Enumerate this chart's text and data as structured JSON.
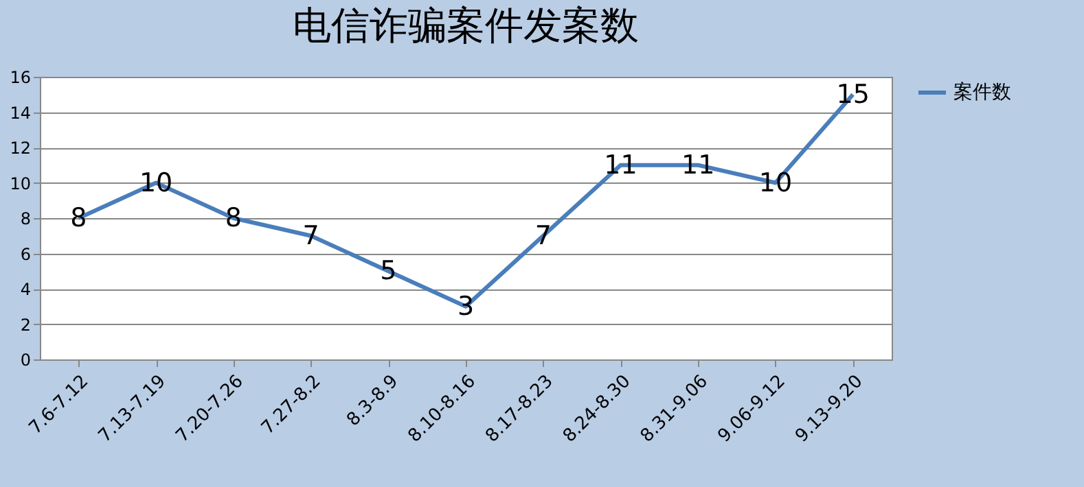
{
  "chart_data": {
    "type": "line",
    "title": "电信诈骗案件发案数",
    "categories": [
      "7.6-7.12",
      "7.13-7.19",
      "7.20-7.26",
      "7.27-8.2",
      "8.3-8.9",
      "8.10-8.16",
      "8.17-8.23",
      "8.24-8.30",
      "8.31-9.06",
      "9.06-9.12",
      "9.13-9.20"
    ],
    "series": [
      {
        "name": "案件数",
        "color": "#4a7ebb",
        "values": [
          8,
          10,
          8,
          7,
          5,
          3,
          7,
          11,
          11,
          10,
          15
        ]
      }
    ],
    "ylim": [
      0,
      16
    ],
    "yticks": [
      0,
      2,
      4,
      6,
      8,
      10,
      12,
      14,
      16
    ],
    "grid": "y",
    "legend": "right",
    "data_labels": true,
    "marker": "none",
    "line_style": "solid"
  }
}
